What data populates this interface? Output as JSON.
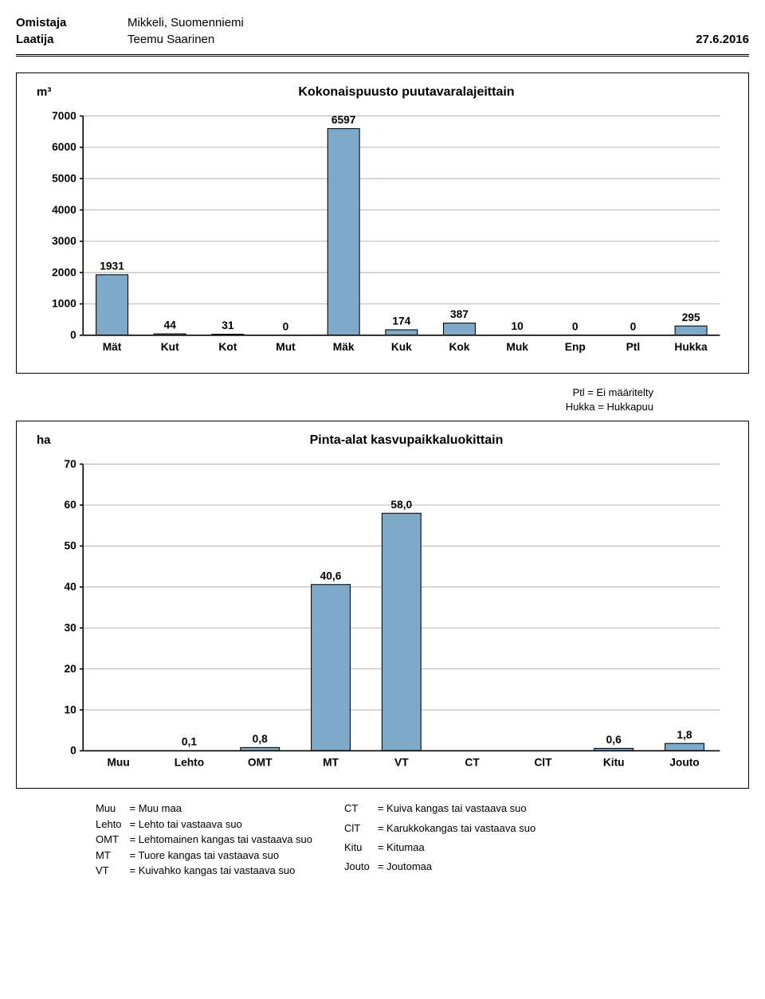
{
  "header": {
    "owner_label": "Omistaja",
    "owner_value": "Mikkeli, Suomenniemi",
    "author_label": "Laatija",
    "author_value": "Teemu Saarinen",
    "date": "27.6.2016"
  },
  "chart1": {
    "unit": "m³",
    "title": "Kokonaispuusto puutavaralajeittain",
    "type": "bar",
    "categories": [
      "Mät",
      "Kut",
      "Kot",
      "Mut",
      "Mäk",
      "Kuk",
      "Kok",
      "Muk",
      "Enp",
      "Ptl",
      "Hukka"
    ],
    "values": [
      1931,
      44,
      31,
      0,
      6597,
      174,
      387,
      10,
      0,
      0,
      295
    ],
    "ylim": [
      0,
      7000
    ],
    "ytick_step": 1000,
    "bar_color": "#7fa9c9",
    "bar_border": "#000000",
    "grid_color": "#b8b8b8",
    "axis_color": "#000000",
    "label_fontsize": 13,
    "value_fontsize": 13,
    "bar_width_ratio": 0.55
  },
  "notes": {
    "line1": "Ptl  = Ei määritelty",
    "line2": "Hukka = Hukkapuu"
  },
  "chart2": {
    "unit": "ha",
    "title": "Pinta-alat kasvupaikkaluokittain",
    "type": "bar",
    "categories": [
      "Muu",
      "Lehto",
      "OMT",
      "MT",
      "VT",
      "CT",
      "ClT",
      "Kitu",
      "Jouto"
    ],
    "values": [
      null,
      0.1,
      0.8,
      40.6,
      58.0,
      null,
      null,
      0.6,
      1.8
    ],
    "value_labels": [
      "",
      "0,1",
      "0,8",
      "40,6",
      "58,0",
      "",
      "",
      "0,6",
      "1,8"
    ],
    "ylim": [
      0,
      70
    ],
    "ytick_step": 10,
    "bar_color": "#7fa9c9",
    "bar_border": "#000000",
    "grid_color": "#b8b8b8",
    "axis_color": "#000000",
    "label_fontsize": 13,
    "value_fontsize": 13,
    "bar_width_ratio": 0.55
  },
  "legend": {
    "col1": [
      {
        "k": "Muu",
        "v": "= Muu maa"
      },
      {
        "k": "Lehto",
        "v": "= Lehto tai vastaava suo"
      },
      {
        "k": "OMT",
        "v": "= Lehtomainen kangas tai vastaava suo"
      },
      {
        "k": "MT",
        "v": "= Tuore kangas tai vastaava suo"
      },
      {
        "k": "VT",
        "v": "= Kuivahko kangas tai vastaava suo"
      }
    ],
    "col2": [
      {
        "k": "CT",
        "v": "= Kuiva kangas tai vastaava suo"
      },
      {
        "k": "ClT",
        "v": "= Karukkokangas tai vastaava suo"
      },
      {
        "k": "Kitu",
        "v": "= Kitumaa"
      },
      {
        "k": "Jouto",
        "v": "= Joutomaa"
      }
    ]
  }
}
